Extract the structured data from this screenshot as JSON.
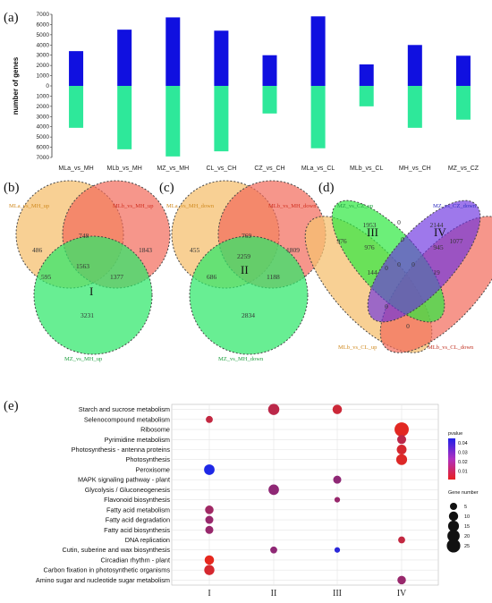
{
  "panels": {
    "a": "(a)",
    "b": "(b)",
    "c": "(c)",
    "d": "(d)",
    "e": "(e)"
  },
  "chart_data": [
    {
      "type": "bar",
      "panel": "(a)",
      "ylabel": "number of genes",
      "ylim": [
        -7000,
        7000
      ],
      "yticks": [
        7000,
        6000,
        5000,
        4000,
        3000,
        2000,
        1000,
        0,
        1000,
        2000,
        3000,
        4000,
        5000,
        6000,
        7000
      ],
      "categories": [
        "MLa_vs_MH",
        "MLb_vs_MH",
        "MZ_vs_MH",
        "CL_vs_CH",
        "CZ_vs_CH",
        "MLa_vs_CL",
        "MLb_vs_CL",
        "MH_vs_CH",
        "MZ_vs_CZ"
      ],
      "series": [
        {
          "color": "#1010e0",
          "values": [
            3400,
            5500,
            6700,
            5400,
            3000,
            6800,
            2100,
            4000,
            2950
          ]
        },
        {
          "color": "#2ee89a",
          "values": [
            -4100,
            -6200,
            -6900,
            -6400,
            -2700,
            -6100,
            -2000,
            -4100,
            -3300
          ]
        }
      ]
    },
    {
      "type": "venn",
      "panel": "(b)",
      "sets": [
        "MLa_vs_MH_up",
        "MLb_vs_MH_up",
        "MZ_vs_MH_up"
      ],
      "regions": {
        "a_only": "486",
        "ab": "748",
        "b_only": "1843",
        "ac": "595",
        "abc": "1563",
        "bc": "1377",
        "c_only": "3231"
      },
      "roman": "I"
    },
    {
      "type": "venn",
      "panel": "(c)",
      "sets": [
        "MLa_vs_MH_down",
        "MLb_vs_MH_down",
        "MZ_vs_MH_down"
      ],
      "regions": {
        "a_only": "455",
        "ab": "769",
        "b_only": "1809",
        "ac": "686",
        "abc": "2259",
        "bc": "1188",
        "c_only": "2834"
      },
      "roman": "II"
    },
    {
      "type": "venn",
      "panel": "(d)",
      "sets": [
        "MZ_vs_CZ_up",
        "MZ_vs_CZ_down",
        "MLb_vs_CL_down",
        "MLb_vs_CL_up"
      ],
      "values": [
        "976",
        "1953",
        "976",
        "0",
        "2144",
        "945",
        "1077",
        "0",
        "0",
        "0",
        "0",
        "144",
        "19",
        "0",
        "0"
      ],
      "roman": [
        "III",
        "IV"
      ]
    },
    {
      "type": "scatter",
      "panel": "(e)",
      "groups": [
        "I",
        "II",
        "III",
        "IV"
      ],
      "terms": [
        "Starch and sucrose metabolism",
        "Selenocompound metabolism",
        "Ribosome",
        "Pyrimidine metabolism",
        "Photosynthesis - antenna proteins",
        "Photosynthesis",
        "Peroxisome",
        "MAPK signaling pathway - plant",
        "Glycolysis / Gluconeogenesis",
        "Flavonoid biosynthesis",
        "Fatty acid metabolism",
        "Fatty acid degradation",
        "Fatty acid biosynthesis",
        "DNA replication",
        "Cutin, suberine and wax biosynthesis",
        "Circadian rhythm - plant",
        "Carbon fixation in photosynthetic organisms",
        "Amino sugar and nucleotide sugar metabolism"
      ],
      "points": [
        {
          "term": 0,
          "group": 1,
          "size": 14,
          "pvalue": 0.012
        },
        {
          "term": 0,
          "group": 2,
          "size": 9,
          "pvalue": 0.008
        },
        {
          "term": 1,
          "group": 0,
          "size": 4,
          "pvalue": 0.01
        },
        {
          "term": 2,
          "group": 3,
          "size": 25,
          "pvalue": 0.003
        },
        {
          "term": 3,
          "group": 3,
          "size": 8,
          "pvalue": 0.012
        },
        {
          "term": 4,
          "group": 3,
          "size": 10,
          "pvalue": 0.006
        },
        {
          "term": 5,
          "group": 3,
          "size": 13,
          "pvalue": 0.004
        },
        {
          "term": 6,
          "group": 0,
          "size": 12,
          "pvalue": 0.048
        },
        {
          "term": 7,
          "group": 2,
          "size": 6,
          "pvalue": 0.022
        },
        {
          "term": 8,
          "group": 1,
          "size": 12,
          "pvalue": 0.022
        },
        {
          "term": 9,
          "group": 2,
          "size": 2,
          "pvalue": 0.02
        },
        {
          "term": 10,
          "group": 0,
          "size": 7,
          "pvalue": 0.018
        },
        {
          "term": 11,
          "group": 0,
          "size": 6,
          "pvalue": 0.02
        },
        {
          "term": 12,
          "group": 0,
          "size": 6,
          "pvalue": 0.02
        },
        {
          "term": 13,
          "group": 3,
          "size": 4,
          "pvalue": 0.01
        },
        {
          "term": 14,
          "group": 1,
          "size": 4,
          "pvalue": 0.022
        },
        {
          "term": 14,
          "group": 2,
          "size": 2,
          "pvalue": 0.045
        },
        {
          "term": 15,
          "group": 0,
          "size": 9,
          "pvalue": 0.002
        },
        {
          "term": 16,
          "group": 0,
          "size": 11,
          "pvalue": 0.006
        },
        {
          "term": 17,
          "group": 3,
          "size": 7,
          "pvalue": 0.02
        }
      ],
      "legend": {
        "pvalue_title": "pvalue",
        "pvalue_ticks": [
          "0.04",
          "0.03",
          "0.02",
          "0.01"
        ],
        "size_title": "Gene number",
        "size_ticks": [
          "5",
          "10",
          "15",
          "20",
          "25"
        ]
      }
    }
  ]
}
